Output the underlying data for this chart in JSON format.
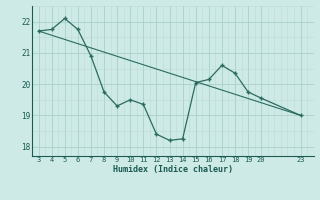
{
  "x_data": [
    3,
    4,
    5,
    6,
    7,
    8,
    9,
    10,
    11,
    12,
    13,
    14,
    15,
    16,
    17,
    18,
    19,
    20,
    23
  ],
  "y_data": [
    21.7,
    21.75,
    22.1,
    21.75,
    20.9,
    19.75,
    19.3,
    19.5,
    19.35,
    18.4,
    18.2,
    18.25,
    20.05,
    20.15,
    20.6,
    20.35,
    19.75,
    19.55,
    19.0
  ],
  "trend_x": [
    3,
    23
  ],
  "trend_y": [
    21.7,
    19.0
  ],
  "line_color": "#2a6b5f",
  "bg_color": "#ceeae7",
  "grid_color_major": "#aacfcb",
  "grid_color_minor": "#bddbd8",
  "axis_color": "#1a5a50",
  "xlabel": "Humidex (Indice chaleur)",
  "xticks": [
    3,
    4,
    5,
    6,
    7,
    8,
    9,
    10,
    11,
    12,
    13,
    14,
    15,
    16,
    17,
    18,
    19,
    20,
    23
  ],
  "yticks": [
    18,
    19,
    20,
    21,
    22
  ],
  "ylim": [
    17.7,
    22.5
  ],
  "xlim": [
    2.5,
    24.0
  ]
}
